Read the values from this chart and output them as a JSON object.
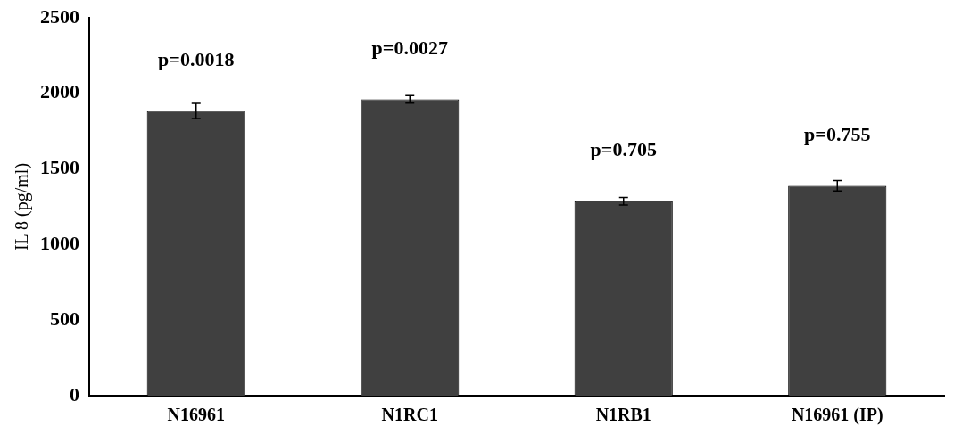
{
  "chart_data": {
    "type": "bar",
    "ylabel": "IL 8 (pg/ml)",
    "categories": [
      "N16961",
      "N1RC1",
      "N1RB1",
      "N16961 (IP)"
    ],
    "values": [
      1884,
      1960,
      1287,
      1389
    ],
    "errors": [
      50,
      25,
      25,
      35
    ],
    "color": "#404040",
    "ylim": [
      0,
      2500
    ],
    "yticks": [
      0,
      500,
      1000,
      1500,
      2000,
      2500
    ],
    "grid": false,
    "legend": false,
    "annotations": [
      "p=0.0018",
      "p=0.0027",
      "p=0.705",
      "p=0.755"
    ]
  }
}
